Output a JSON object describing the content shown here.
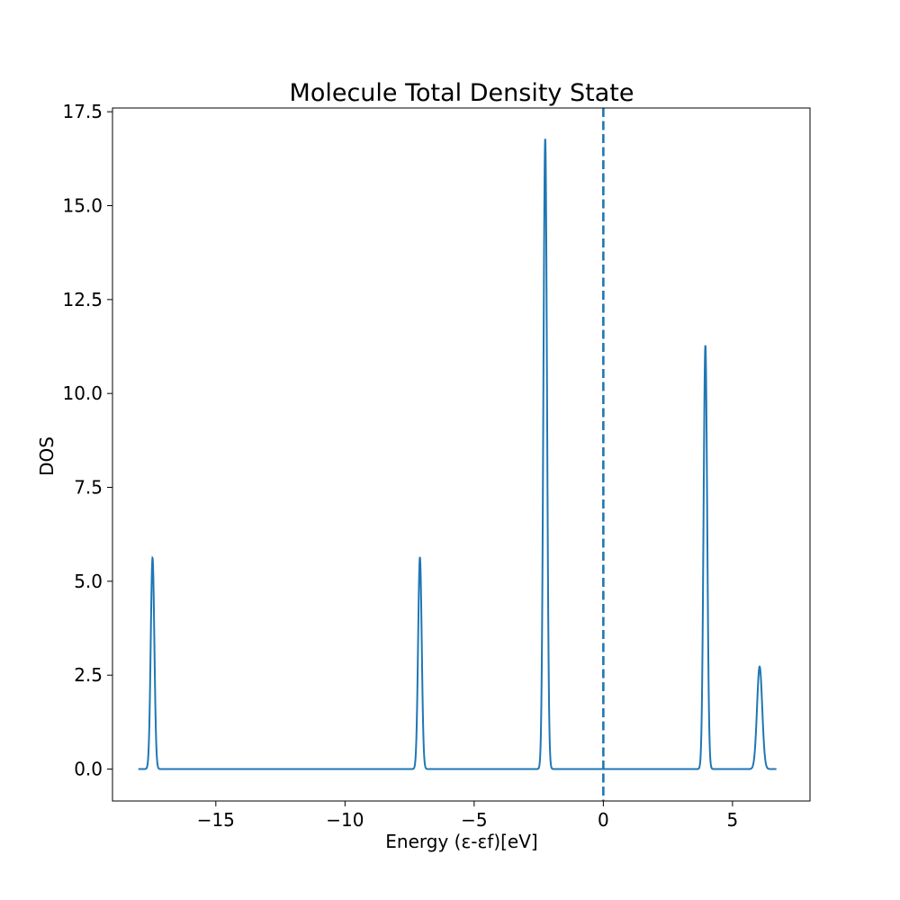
{
  "chart_data": {
    "type": "line",
    "title": "Molecule Total Density State",
    "xlabel": "Energy (ε-εf)[eV]",
    "ylabel": "DOS",
    "xlim": [
      -19.0,
      8.0
    ],
    "ylim": [
      -0.85,
      17.6
    ],
    "x_range": [
      -18.0,
      6.7
    ],
    "grid": false,
    "xticks": [
      {
        "value": -15,
        "label": "−15"
      },
      {
        "value": -10,
        "label": "−10"
      },
      {
        "value": -5,
        "label": "−5"
      },
      {
        "value": 0,
        "label": "0"
      },
      {
        "value": 5,
        "label": "5"
      }
    ],
    "yticks": [
      {
        "value": 0.0,
        "label": "0.0"
      },
      {
        "value": 2.5,
        "label": "2.5"
      },
      {
        "value": 5.0,
        "label": "5.0"
      },
      {
        "value": 7.5,
        "label": "7.5"
      },
      {
        "value": 10.0,
        "label": "10.0"
      },
      {
        "value": 12.5,
        "label": "12.5"
      },
      {
        "value": 15.0,
        "label": "15.0"
      },
      {
        "value": 17.5,
        "label": "17.5"
      }
    ],
    "series": [
      {
        "color": "#1f77b4",
        "peaks": [
          {
            "center": -17.45,
            "height": 5.62,
            "width": 0.07
          },
          {
            "center": -7.1,
            "height": 5.63,
            "width": 0.07
          },
          {
            "center": -2.25,
            "height": 16.78,
            "width": 0.07
          },
          {
            "center": 3.95,
            "height": 11.28,
            "width": 0.07
          },
          {
            "center": 6.05,
            "height": 2.73,
            "width": 0.1
          }
        ]
      }
    ],
    "vline": {
      "x": 0,
      "style": "dashed",
      "color": "#1f77b4"
    }
  }
}
